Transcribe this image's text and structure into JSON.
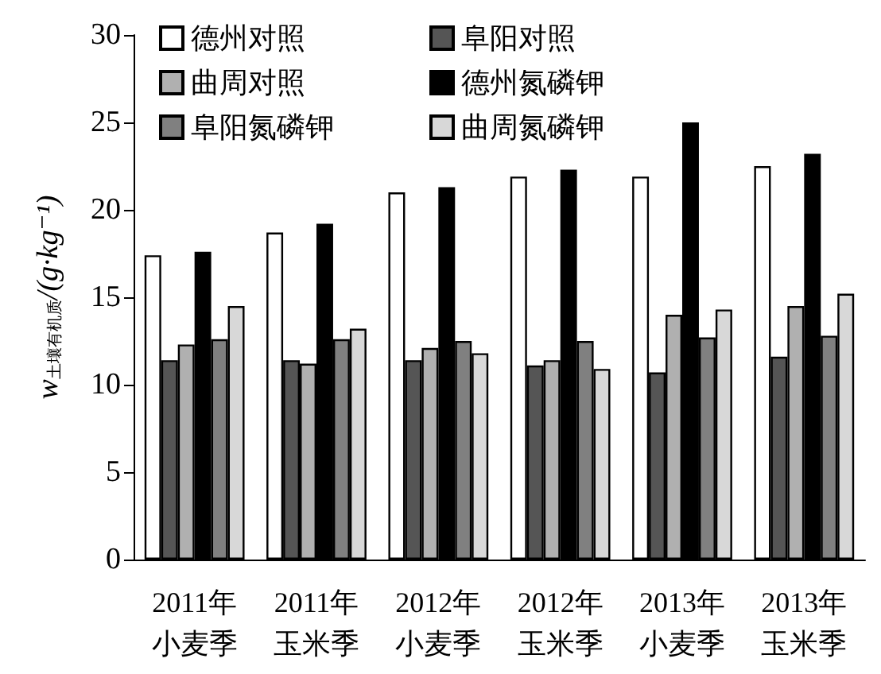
{
  "chart_data": {
    "type": "bar",
    "ylabel": "w$_{土壤有机质}$/(g·kg⁻¹)",
    "categories": [
      "2011年小麦季",
      "2011年玉米季",
      "2012年小麦季",
      "2012年玉米季",
      "2013年小麦季",
      "2013年玉米季"
    ],
    "series": [
      {
        "name": "德州对照",
        "color": "#ffffff",
        "values": [
          17.4,
          18.7,
          21.0,
          21.9,
          21.9,
          22.5
        ]
      },
      {
        "name": "阜阳对照",
        "color": "#555555",
        "values": [
          11.4,
          11.4,
          11.4,
          11.1,
          10.7,
          11.6
        ]
      },
      {
        "name": "曲周对照",
        "color": "#b0b0b0",
        "values": [
          12.3,
          11.2,
          12.1,
          11.4,
          14.0,
          14.5
        ]
      },
      {
        "name": "德州氮磷钾",
        "color": "#000000",
        "values": [
          17.6,
          19.2,
          21.3,
          22.3,
          25.0,
          23.2
        ]
      },
      {
        "name": "阜阳氮磷钾",
        "color": "#808080",
        "values": [
          12.6,
          12.6,
          12.5,
          12.5,
          12.7,
          12.8
        ]
      },
      {
        "name": "曲周氮磷钾",
        "color": "#d8d8d8",
        "values": [
          14.5,
          13.2,
          11.8,
          10.9,
          14.3,
          15.2
        ]
      }
    ],
    "ylim": [
      0,
      30
    ],
    "yticks": [
      0,
      5,
      10,
      15,
      20,
      25,
      30
    ],
    "grid": false,
    "legend": "top left"
  }
}
